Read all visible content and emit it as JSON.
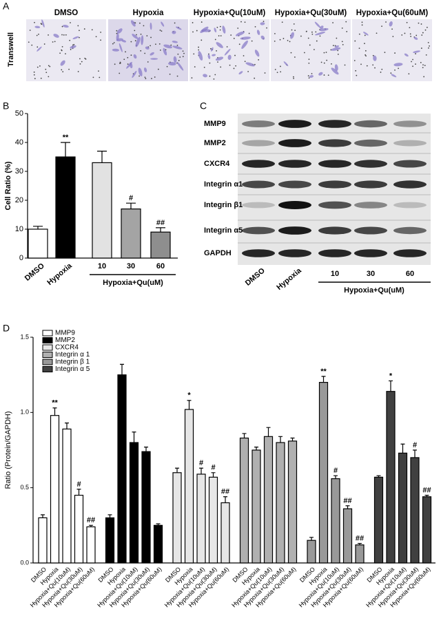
{
  "panel_a": {
    "label": "A",
    "side_label": "Transwell",
    "titles": [
      "DMSO",
      "Hypoxia",
      "Hypoxia+Qu(10uM)",
      "Hypoxia+Qu(30uM)",
      "Hypoxia+Qu(60uM)"
    ]
  },
  "panel_c": {
    "label": "C",
    "proteins": [
      "MMP9",
      "MMP2",
      "CXCR4",
      "Integrin α1",
      "Integrin β1",
      "Integrin α5",
      "GAPDH"
    ],
    "lanes": [
      "DMSO",
      "Hypoxia",
      "10",
      "30",
      "60"
    ],
    "group_label": "Hypoxia+Qu(uM)"
  },
  "chart_data": [
    {
      "type": "bar",
      "panel_label": "B",
      "y_label": "Cell Ratio (%)",
      "categories": [
        "DMSO",
        "Hypoxia",
        "10",
        "30",
        "60"
      ],
      "group_label": "Hypoxia+Qu(uM)",
      "values": [
        10,
        35,
        33,
        17,
        9
      ],
      "errors": [
        1,
        5,
        4,
        2,
        1.5
      ],
      "annotations": [
        null,
        "**",
        null,
        "#",
        "##"
      ],
      "colors": [
        "#ffffff",
        "#000000",
        "#e2e2e2",
        "#a4a4a4",
        "#8e8e8e"
      ],
      "ylim": [
        0,
        50
      ],
      "yticks": [
        0,
        10,
        20,
        30,
        40,
        50
      ]
    },
    {
      "type": "grouped_bar",
      "panel_label": "D",
      "y_label": "Ratio (Protein/GAPDH)",
      "categories": [
        "DMSO",
        "Hypoxia",
        "Hypoxia+Qu(10uM)",
        "Hypoxia+Qu(30uM)",
        "Hypoxia+Qu(60uM)"
      ],
      "ylim": [
        0,
        1.5
      ],
      "yticks": [
        {
          "value": 0,
          "label": "0.0"
        },
        {
          "value": 0.5,
          "label": "0.5"
        },
        {
          "value": 1,
          "label": "1.0"
        },
        {
          "value": 1.5,
          "label": "1.5"
        }
      ],
      "series": [
        {
          "name": "MMP9",
          "color": "#ffffff",
          "values": [
            0.3,
            0.98,
            0.89,
            0.45,
            0.24
          ],
          "errors": [
            0.02,
            0.05,
            0.04,
            0.04,
            0.01
          ],
          "annotations": [
            null,
            "**",
            null,
            "#",
            "##"
          ]
        },
        {
          "name": "MMP2",
          "color": "#000000",
          "values": [
            0.3,
            1.25,
            0.8,
            0.74,
            0.25
          ],
          "errors": [
            0.02,
            0.07,
            0.07,
            0.03,
            0.01
          ],
          "annotations": [
            null,
            null,
            null,
            null,
            null
          ]
        },
        {
          "name": "CXCR4",
          "color": "#e6e6e6",
          "values": [
            0.6,
            1.02,
            0.59,
            0.57,
            0.4
          ],
          "errors": [
            0.03,
            0.06,
            0.04,
            0.03,
            0.04
          ],
          "annotations": [
            null,
            "*",
            "#",
            "#",
            "##"
          ]
        },
        {
          "name": "Integrin α 1",
          "color": "#b0b0b0",
          "values": [
            0.83,
            0.75,
            0.84,
            0.8,
            0.81
          ],
          "errors": [
            0.03,
            0.02,
            0.06,
            0.04,
            0.02
          ],
          "annotations": [
            null,
            null,
            null,
            null,
            null
          ]
        },
        {
          "name": "Integrin β 1",
          "color": "#999999",
          "values": [
            0.15,
            1.2,
            0.56,
            0.36,
            0.12
          ],
          "errors": [
            0.02,
            0.04,
            0.02,
            0.02,
            0.01
          ],
          "annotations": [
            null,
            "**",
            "#",
            "##",
            "##"
          ]
        },
        {
          "name": "Integrin α 5",
          "color": "#404040",
          "values": [
            0.57,
            1.14,
            0.73,
            0.7,
            0.44
          ],
          "errors": [
            0.01,
            0.07,
            0.06,
            0.05,
            0.01
          ],
          "annotations": [
            null,
            "*",
            null,
            "#",
            "##"
          ]
        }
      ]
    }
  ]
}
